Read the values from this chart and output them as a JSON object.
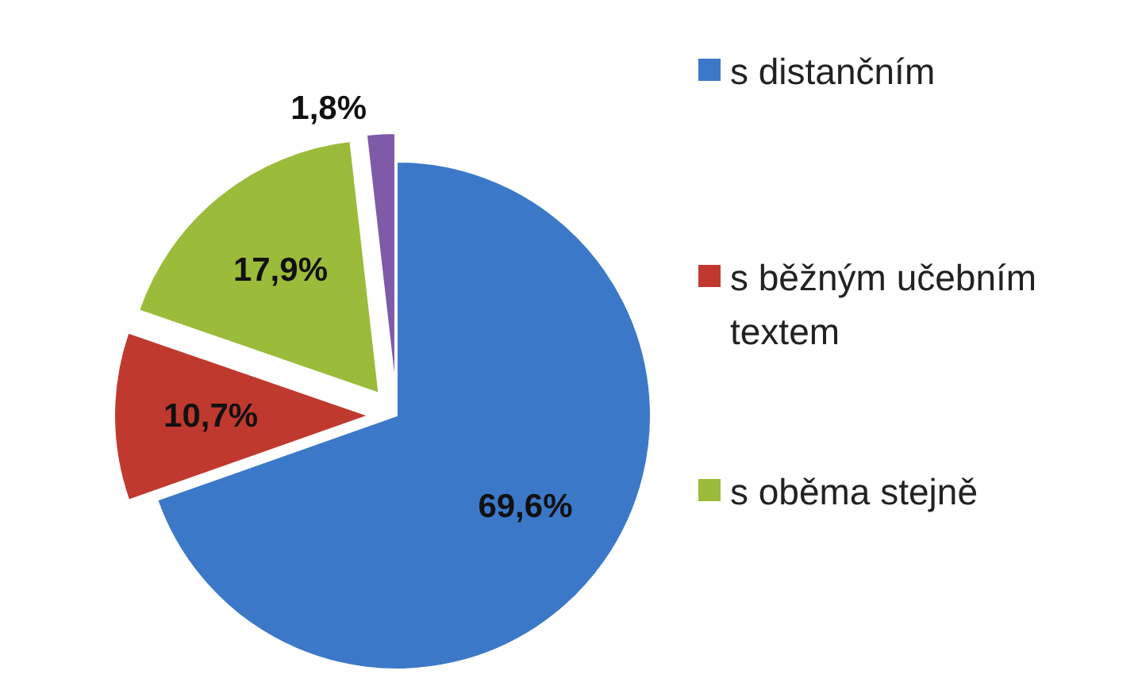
{
  "chart_data": {
    "type": "pie",
    "categories": [
      "s distančním",
      "s běžným učebním textem",
      "s oběma stejně",
      null
    ],
    "values": [
      69.6,
      10.7,
      17.9,
      1.8
    ],
    "colors": [
      "#3b78c8",
      "#c0392f",
      "#9bbb3b",
      "#7f5aa8"
    ],
    "value_labels": [
      "69,6%",
      "10,7%",
      "17,9%",
      "1,8%"
    ],
    "legend": "right"
  }
}
